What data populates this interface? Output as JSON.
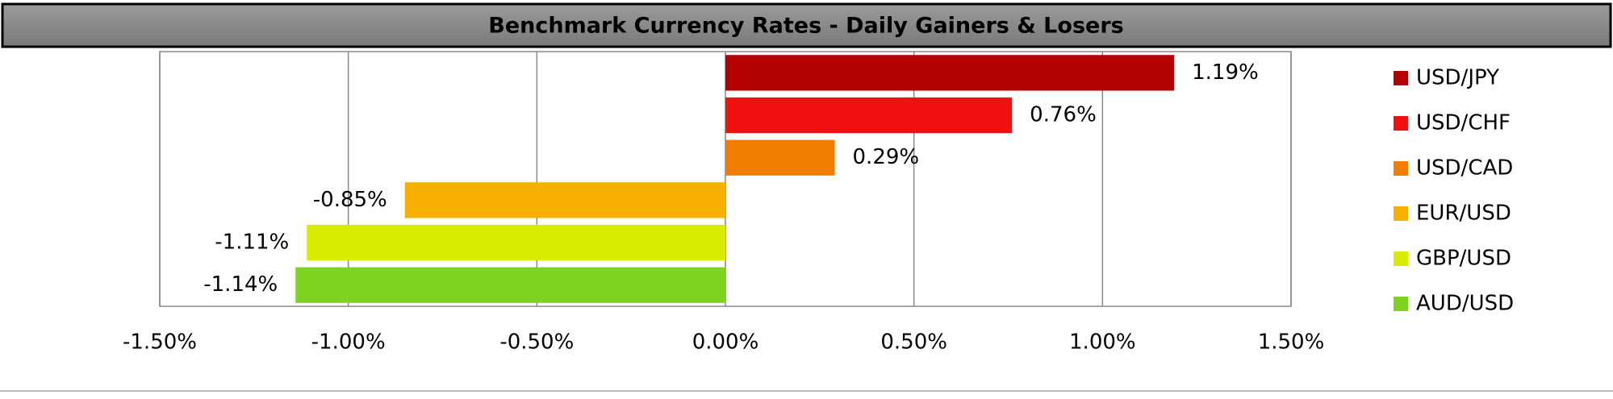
{
  "chart_data": {
    "type": "bar",
    "orientation": "horizontal",
    "title": "Benchmark Currency Rates - Daily Gainers & Losers",
    "series": [
      {
        "name": "USD/JPY",
        "color": "#b30000",
        "values": [
          1.19
        ],
        "value_labels": [
          "1.19%"
        ]
      },
      {
        "name": "USD/CHF",
        "color": "#f01010",
        "values": [
          0.76
        ],
        "value_labels": [
          "0.76%"
        ]
      },
      {
        "name": "USD/CAD",
        "color": "#f07c00",
        "values": [
          0.29
        ],
        "value_labels": [
          "0.29%"
        ]
      },
      {
        "name": "EUR/USD",
        "color": "#f7b000",
        "values": [
          -0.85
        ],
        "value_labels": [
          "-0.85%"
        ]
      },
      {
        "name": "GBP/USD",
        "color": "#d9ec00",
        "values": [
          -1.11
        ],
        "value_labels": [
          "-1.11%"
        ]
      },
      {
        "name": "AUD/USD",
        "color": "#7ed321",
        "values": [
          -1.14
        ],
        "value_labels": [
          "-1.14%"
        ]
      }
    ],
    "xlim": [
      -1.5,
      1.5
    ],
    "xticks": [
      {
        "value": -1.5,
        "label": "-1.50%"
      },
      {
        "value": -1.0,
        "label": "-1.00%"
      },
      {
        "value": -0.5,
        "label": "-0.50%"
      },
      {
        "value": 0,
        "label": "0.00%"
      },
      {
        "value": 0.5,
        "label": "0.50%"
      },
      {
        "value": 1.0,
        "label": "1.00%"
      },
      {
        "value": 1.5,
        "label": "1.50%"
      }
    ],
    "grid": true,
    "legend": "right"
  }
}
